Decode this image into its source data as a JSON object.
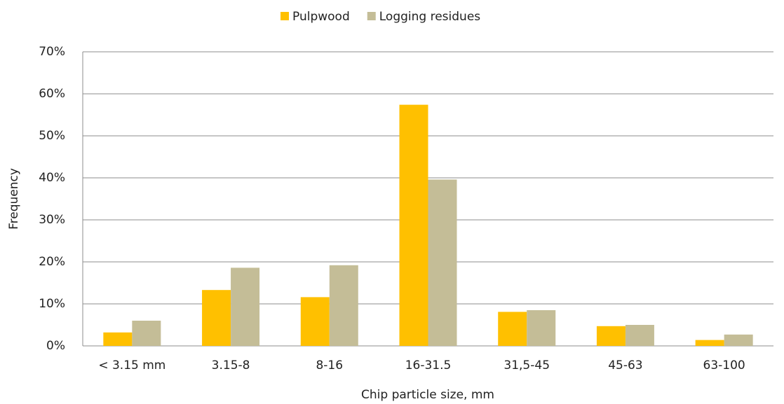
{
  "chart_data": {
    "type": "bar",
    "x_label": "Chip particle size, mm",
    "y_label": "Frequency",
    "categories": [
      "< 3.15 mm",
      "3.15-8",
      "8-16",
      "16-31.5",
      "31,5-45",
      "45-63",
      "63-100"
    ],
    "series": [
      {
        "name": "Pulpwood",
        "color": "#ffc000",
        "values": [
          3.2,
          13.3,
          11.6,
          57.4,
          8.1,
          4.7,
          1.4
        ]
      },
      {
        "name": "Logging residues",
        "color": "#c4bd97",
        "values": [
          6.0,
          18.6,
          19.2,
          39.6,
          8.5,
          5.0,
          2.7
        ]
      }
    ],
    "ylim": [
      0,
      70
    ],
    "yticks": [
      {
        "value": 0,
        "label": "0%"
      },
      {
        "value": 10,
        "label": "10%"
      },
      {
        "value": 20,
        "label": "20%"
      },
      {
        "value": 30,
        "label": "30%"
      },
      {
        "value": 40,
        "label": "40%"
      },
      {
        "value": 50,
        "label": "50%"
      },
      {
        "value": 60,
        "label": "60%"
      },
      {
        "value": 70,
        "label": "70%"
      }
    ],
    "grid": true,
    "legend": "top"
  }
}
